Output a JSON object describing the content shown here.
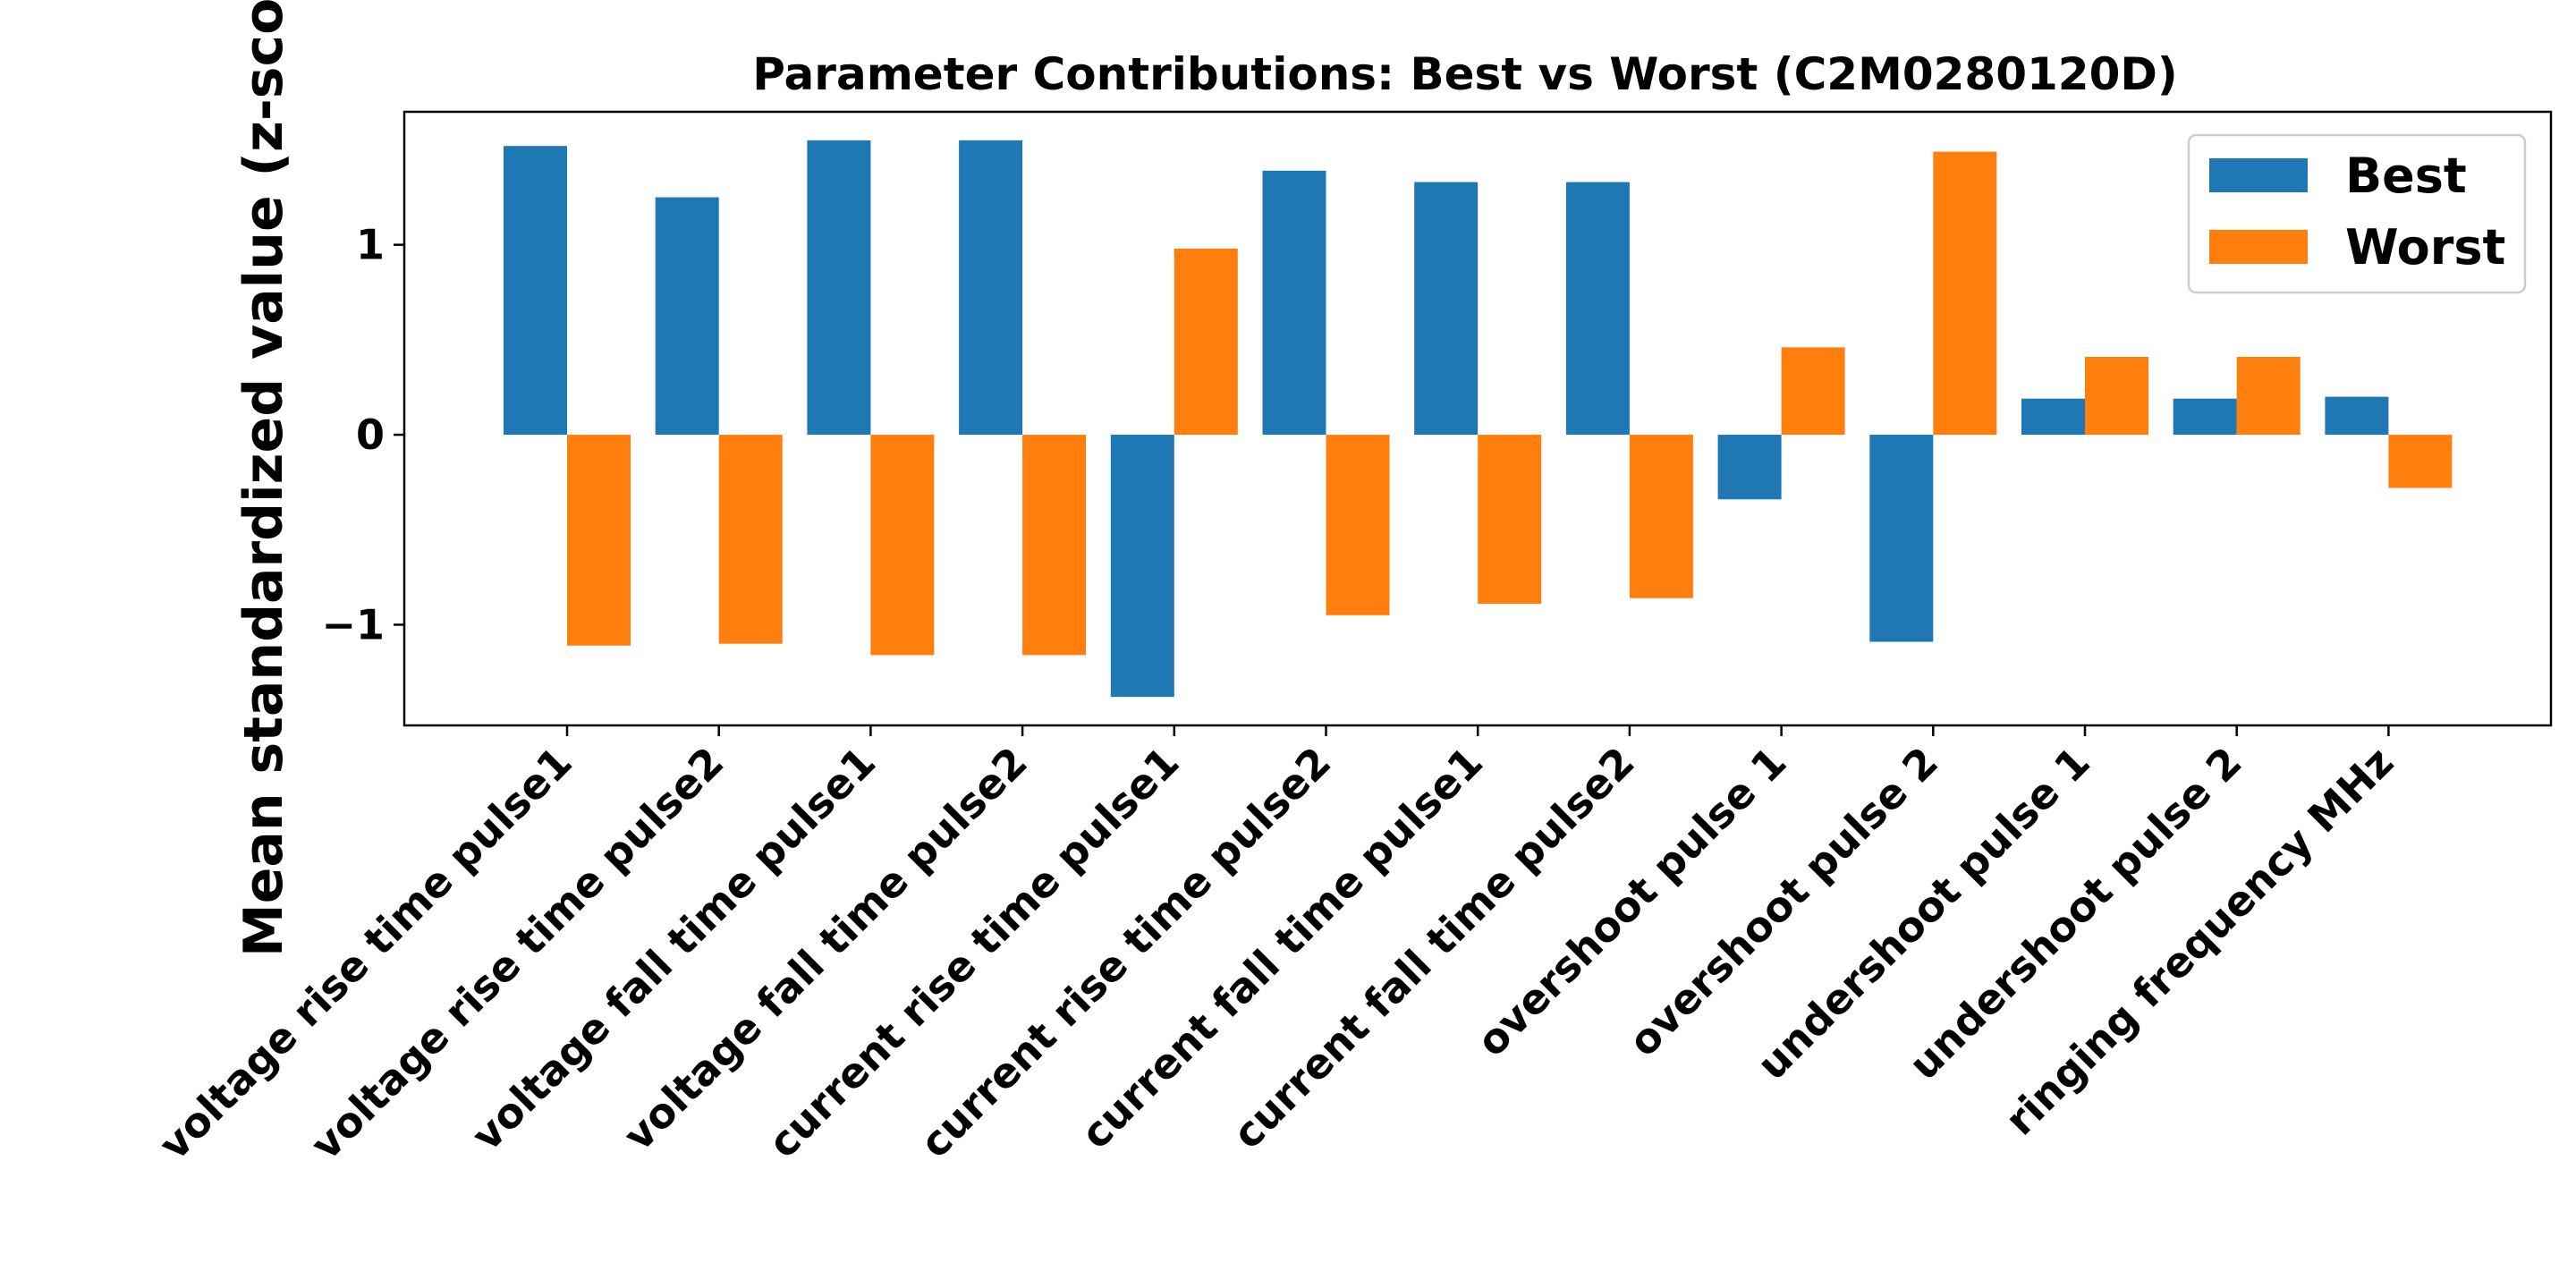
{
  "chart_data": {
    "type": "bar",
    "title": "Parameter Contributions: Best vs Worst (C2M0280120D)",
    "xlabel": "",
    "ylabel": "Mean standardized value (z-score)",
    "categories": [
      "voltage rise time pulse1",
      "voltage rise time pulse2",
      "voltage fall time pulse1",
      "voltage fall time pulse2",
      "current rise time pulse1",
      "current rise time pulse2",
      "current fall time pulse1",
      "current fall time pulse2",
      "overshoot pulse 1",
      "overshoot pulse 2",
      "undershoot pulse 1",
      "undershoot pulse 2",
      "ringing frequency MHz"
    ],
    "series": [
      {
        "name": "Best",
        "color": "#1f77b4",
        "values": [
          1.52,
          1.25,
          1.55,
          1.55,
          -1.38,
          1.39,
          1.33,
          1.33,
          -0.34,
          -1.09,
          0.19,
          0.19,
          0.2
        ]
      },
      {
        "name": "Worst",
        "color": "#ff7f0e",
        "values": [
          -1.11,
          -1.1,
          -1.16,
          -1.16,
          0.98,
          -0.95,
          -0.89,
          -0.86,
          0.46,
          1.49,
          0.41,
          0.41,
          -0.28
        ]
      }
    ],
    "ylim": [
      -1.53,
      1.7
    ],
    "yticks": [
      -1,
      0,
      1
    ],
    "ytick_labels": [
      "−1",
      "0",
      "1"
    ],
    "grid": false,
    "legend_position": "top-right"
  }
}
